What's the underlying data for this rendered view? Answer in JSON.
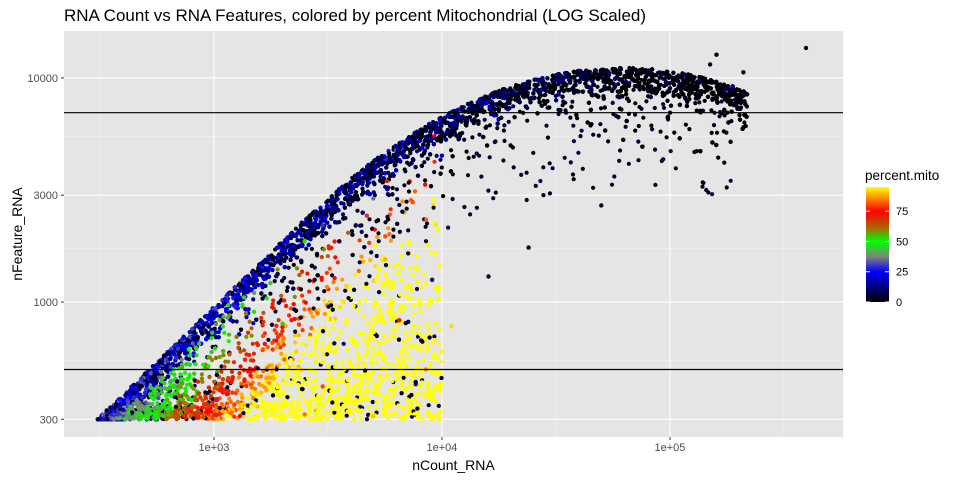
{
  "chart_data": {
    "type": "scatter",
    "title": "RNA Count vs RNA Features, colored by percent Mitochondrial (LOG Scaled)",
    "xlabel": "nCount_RNA",
    "ylabel": "nFeature_RNA",
    "x_scale": "log10",
    "y_scale": "log10",
    "xlim": [
      220,
      574000
    ],
    "ylim": [
      250,
      16200
    ],
    "x_ticks": [
      {
        "value": 1000,
        "label": "1e+03"
      },
      {
        "value": 10000,
        "label": "1e+04"
      },
      {
        "value": 100000,
        "label": "1e+05"
      }
    ],
    "y_ticks": [
      {
        "value": 300,
        "label": "300"
      },
      {
        "value": 1000,
        "label": "1000"
      },
      {
        "value": 3000,
        "label": "3000"
      },
      {
        "value": 10000,
        "label": "10000"
      }
    ],
    "grid": true,
    "hlines": [
      7000,
      500
    ],
    "color_variable": "percent.mito",
    "legend": {
      "title": "percent.mito",
      "placement": "right",
      "type": "colorbar",
      "range": [
        0,
        95
      ],
      "breaks": [
        {
          "value": 0,
          "label": "0"
        },
        {
          "value": 25,
          "label": "25"
        },
        {
          "value": 50,
          "label": "50"
        },
        {
          "value": 75,
          "label": "75"
        }
      ],
      "colors": [
        {
          "value": 0,
          "color": "#000000"
        },
        {
          "value": 25,
          "color": "#0000ff"
        },
        {
          "value": 37,
          "color": "#808080"
        },
        {
          "value": 50,
          "color": "#00ff00"
        },
        {
          "value": 62,
          "color": "#b06000"
        },
        {
          "value": 75,
          "color": "#ff0000"
        },
        {
          "value": 85,
          "color": "#ff8000"
        },
        {
          "value": 95,
          "color": "#ffff00"
        }
      ]
    },
    "sample_points": [
      {
        "x": 310,
        "y": 300,
        "mito": 5
      },
      {
        "x": 400,
        "y": 330,
        "mito": 20
      },
      {
        "x": 600,
        "y": 310,
        "mito": 45
      },
      {
        "x": 900,
        "y": 305,
        "mito": 62
      },
      {
        "x": 1300,
        "y": 310,
        "mito": 75
      },
      {
        "x": 2500,
        "y": 315,
        "mito": 84
      },
      {
        "x": 5000,
        "y": 310,
        "mito": 90
      },
      {
        "x": 9800,
        "y": 300,
        "mito": 95
      },
      {
        "x": 3000,
        "y": 420,
        "mito": 80
      },
      {
        "x": 8500,
        "y": 500,
        "mito": 86
      },
      {
        "x": 11000,
        "y": 780,
        "mito": 92
      },
      {
        "x": 6500,
        "y": 830,
        "mito": 76
      },
      {
        "x": 2000,
        "y": 800,
        "mito": 55
      },
      {
        "x": 1500,
        "y": 1100,
        "mito": 40
      },
      {
        "x": 3000,
        "y": 2200,
        "mito": 30
      },
      {
        "x": 5000,
        "y": 2900,
        "mito": 35
      },
      {
        "x": 10000,
        "y": 4500,
        "mito": 18
      },
      {
        "x": 20000,
        "y": 5000,
        "mito": 2
      },
      {
        "x": 35000,
        "y": 7000,
        "mito": 12
      },
      {
        "x": 60000,
        "y": 8200,
        "mito": 8
      },
      {
        "x": 100000,
        "y": 9000,
        "mito": 5
      },
      {
        "x": 150000,
        "y": 11500,
        "mito": 2
      },
      {
        "x": 160000,
        "y": 12700,
        "mito": 1
      },
      {
        "x": 210000,
        "y": 10600,
        "mito": 1
      },
      {
        "x": 395000,
        "y": 13600,
        "mito": 1
      },
      {
        "x": 100000,
        "y": 7000,
        "mito": 1
      },
      {
        "x": 50000,
        "y": 2700,
        "mito": 3
      },
      {
        "x": 24000,
        "y": 1750,
        "mito": 2
      },
      {
        "x": 16000,
        "y": 1300,
        "mito": 4
      },
      {
        "x": 1000,
        "y": 900,
        "mito": 15
      },
      {
        "x": 500,
        "y": 480,
        "mito": 10
      }
    ]
  }
}
